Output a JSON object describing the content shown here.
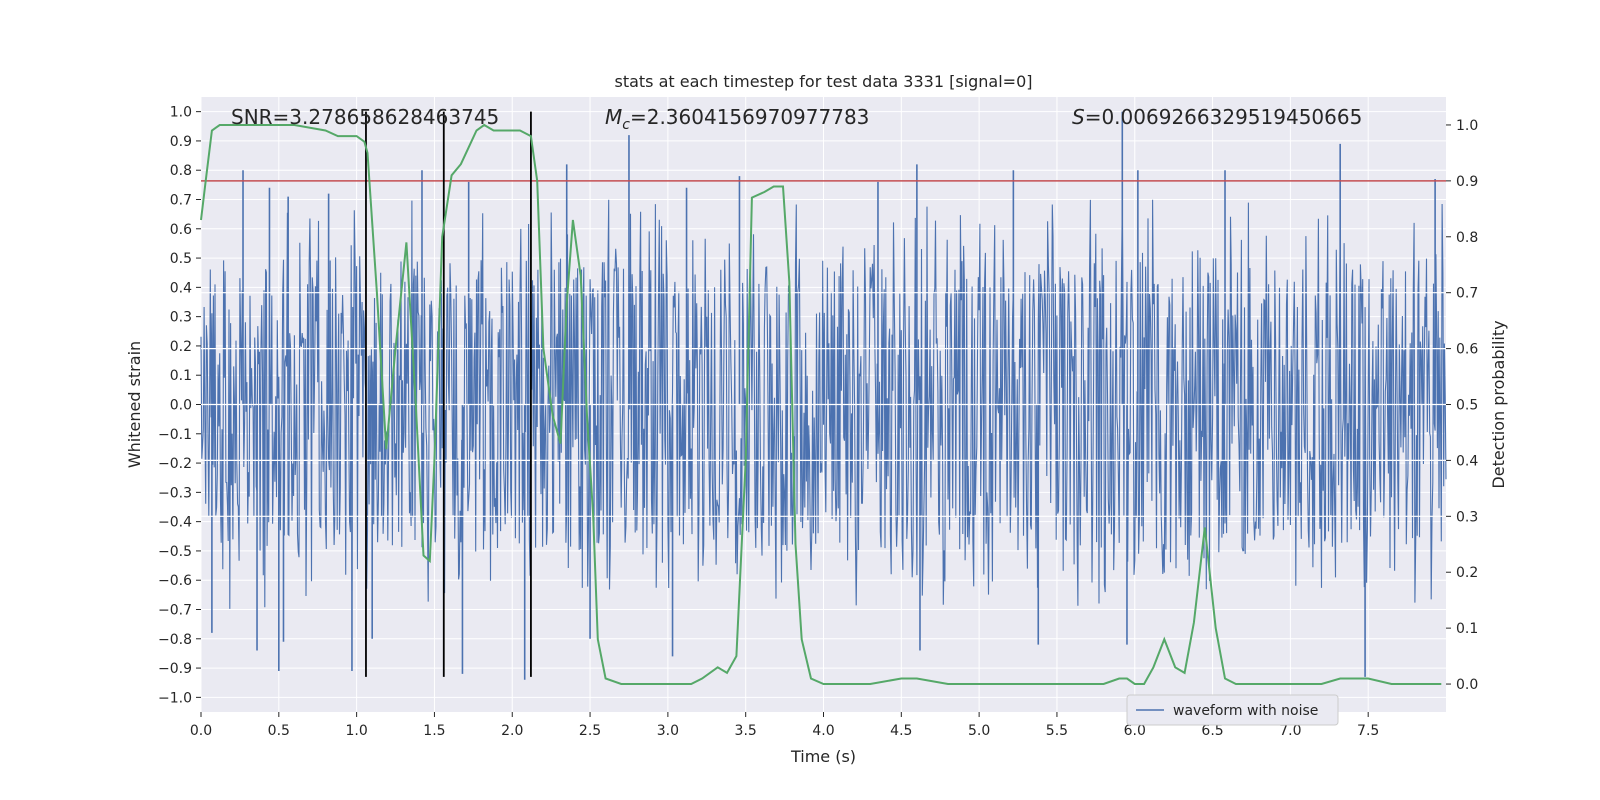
{
  "chart_data": {
    "type": "line",
    "title": "stats at each timestep for test data 3331 [signal=0]",
    "xlabel": "Time (s)",
    "ylabel_left": "Whitened strain",
    "ylabel_right": "Detection probability",
    "xlim": [
      0,
      8
    ],
    "ylim_left": [
      -1.05,
      1.05
    ],
    "ylim_right": [
      -0.05,
      1.05
    ],
    "x_ticks": [
      0.0,
      0.5,
      1.0,
      1.5,
      2.0,
      2.5,
      3.0,
      3.5,
      4.0,
      4.5,
      5.0,
      5.5,
      6.0,
      6.5,
      7.0,
      7.5
    ],
    "x_tick_labels": [
      "0.0",
      "0.5",
      "1.0",
      "1.5",
      "2.0",
      "2.5",
      "3.0",
      "3.5",
      "4.0",
      "4.5",
      "5.0",
      "5.5",
      "6.0",
      "6.5",
      "7.0",
      "7.5"
    ],
    "y_left_ticks": [
      1.0,
      0.9,
      0.8,
      0.7,
      0.6,
      0.5,
      0.4,
      0.3,
      0.2,
      0.1,
      0.0,
      -0.1,
      -0.2,
      -0.3,
      -0.4,
      -0.5,
      -0.6,
      -0.7,
      -0.8,
      -0.9,
      -1.0
    ],
    "y_left_tick_labels": [
      "1.0",
      "0.9",
      "0.8",
      "0.7",
      "0.6",
      "0.5",
      "0.4",
      "0.3",
      "0.2",
      "0.1",
      "0.0",
      "−0.1",
      "−0.2",
      "−0.3",
      "−0.4",
      "−0.5",
      "−0.6",
      "−0.7",
      "−0.8",
      "−0.9",
      "−1.0"
    ],
    "y_right_ticks": [
      1.0,
      0.9,
      0.8,
      0.7,
      0.6,
      0.5,
      0.4,
      0.3,
      0.2,
      0.1,
      0.0
    ],
    "y_right_tick_labels": [
      "1.0",
      "0.9",
      "0.8",
      "0.7",
      "0.6",
      "0.5",
      "0.4",
      "0.3",
      "0.2",
      "0.1",
      "0.0"
    ],
    "annotations": {
      "snr": "SNR=3.278658628463745",
      "mc_symbol": "M",
      "mc_sub": "c",
      "mc_value": "=2.3604156970977783",
      "s_symbol": "S",
      "s_value": "=0.0069266329519450665"
    },
    "threshold": {
      "value": 0.9,
      "axis": "right",
      "color": "#c44e52"
    },
    "vertical_lines": [
      1.06,
      1.56,
      2.12
    ],
    "vertical_line_range": [
      -0.93,
      1.0
    ],
    "legend": {
      "label": "waveform with noise",
      "location": "lower right"
    },
    "series": [
      {
        "name": "waveform with noise",
        "axis": "left",
        "color": "#4c72b0",
        "kind": "noise",
        "typical_range": [
          -0.5,
          0.5
        ],
        "peaks": [
          {
            "x": 0.27,
            "y": 0.8
          },
          {
            "x": 0.44,
            "y": 0.74
          },
          {
            "x": 0.56,
            "y": 0.71
          },
          {
            "x": 0.82,
            "y": 0.72
          },
          {
            "x": 1.42,
            "y": 0.8
          },
          {
            "x": 1.72,
            "y": 0.76
          },
          {
            "x": 2.35,
            "y": 0.82
          },
          {
            "x": 2.75,
            "y": 0.92
          },
          {
            "x": 3.12,
            "y": 0.74
          },
          {
            "x": 3.46,
            "y": 0.78
          },
          {
            "x": 4.35,
            "y": 0.76
          },
          {
            "x": 4.6,
            "y": 0.82
          },
          {
            "x": 5.22,
            "y": 0.8
          },
          {
            "x": 5.92,
            "y": 1.0
          },
          {
            "x": 6.02,
            "y": 0.8
          },
          {
            "x": 6.58,
            "y": 0.8
          },
          {
            "x": 7.32,
            "y": 0.89
          },
          {
            "x": 7.93,
            "y": 0.77
          },
          {
            "x": 0.07,
            "y": -0.78
          },
          {
            "x": 0.36,
            "y": -0.84
          },
          {
            "x": 0.5,
            "y": -0.91
          },
          {
            "x": 0.53,
            "y": -0.81
          },
          {
            "x": 0.97,
            "y": -0.91
          },
          {
            "x": 1.1,
            "y": -0.8
          },
          {
            "x": 1.68,
            "y": -0.92
          },
          {
            "x": 2.08,
            "y": -0.94
          },
          {
            "x": 2.5,
            "y": -0.8
          },
          {
            "x": 3.03,
            "y": -0.86
          },
          {
            "x": 4.62,
            "y": -0.84
          },
          {
            "x": 5.38,
            "y": -0.82
          },
          {
            "x": 5.95,
            "y": -0.82
          },
          {
            "x": 7.48,
            "y": -0.93
          }
        ]
      },
      {
        "name": "detection probability",
        "axis": "right",
        "color": "#55a868",
        "x": [
          0.0,
          0.03,
          0.07,
          0.12,
          0.2,
          0.4,
          0.6,
          0.8,
          0.88,
          0.95,
          1.0,
          1.05,
          1.07,
          1.13,
          1.19,
          1.25,
          1.32,
          1.38,
          1.43,
          1.47,
          1.5,
          1.55,
          1.61,
          1.67,
          1.72,
          1.77,
          1.82,
          1.88,
          1.95,
          2.05,
          2.12,
          2.16,
          2.2,
          2.26,
          2.31,
          2.35,
          2.39,
          2.44,
          2.48,
          2.52,
          2.55,
          2.6,
          2.7,
          3.0,
          3.15,
          3.22,
          3.32,
          3.38,
          3.44,
          3.5,
          3.54,
          3.62,
          3.68,
          3.74,
          3.78,
          3.82,
          3.86,
          3.92,
          4.0,
          4.3,
          4.5,
          4.6,
          4.8,
          5.0,
          5.2,
          5.4,
          5.6,
          5.8,
          5.9,
          5.95,
          6.0,
          6.06,
          6.12,
          6.19,
          6.26,
          6.32,
          6.38,
          6.45,
          6.52,
          6.58,
          6.65,
          6.7,
          6.85,
          7.0,
          7.2,
          7.32,
          7.4,
          7.5,
          7.65,
          7.97
        ],
        "values": [
          0.83,
          0.9,
          0.99,
          1.0,
          1.0,
          1.0,
          1.0,
          0.99,
          0.98,
          0.98,
          0.98,
          0.97,
          0.95,
          0.7,
          0.42,
          0.6,
          0.79,
          0.5,
          0.23,
          0.22,
          0.4,
          0.8,
          0.91,
          0.93,
          0.96,
          0.99,
          1.0,
          0.99,
          0.99,
          0.99,
          0.98,
          0.9,
          0.6,
          0.48,
          0.43,
          0.68,
          0.83,
          0.73,
          0.48,
          0.3,
          0.08,
          0.01,
          0.0,
          0.0,
          0.0,
          0.01,
          0.03,
          0.02,
          0.05,
          0.4,
          0.87,
          0.88,
          0.89,
          0.89,
          0.72,
          0.25,
          0.08,
          0.01,
          0.0,
          0.0,
          0.01,
          0.01,
          0.0,
          0.0,
          0.0,
          0.0,
          0.0,
          0.0,
          0.01,
          0.01,
          0.0,
          0.0,
          0.03,
          0.08,
          0.03,
          0.02,
          0.11,
          0.28,
          0.1,
          0.01,
          0.0,
          0.0,
          0.0,
          0.0,
          0.0,
          0.01,
          0.01,
          0.01,
          0.0,
          0.0
        ]
      }
    ]
  }
}
